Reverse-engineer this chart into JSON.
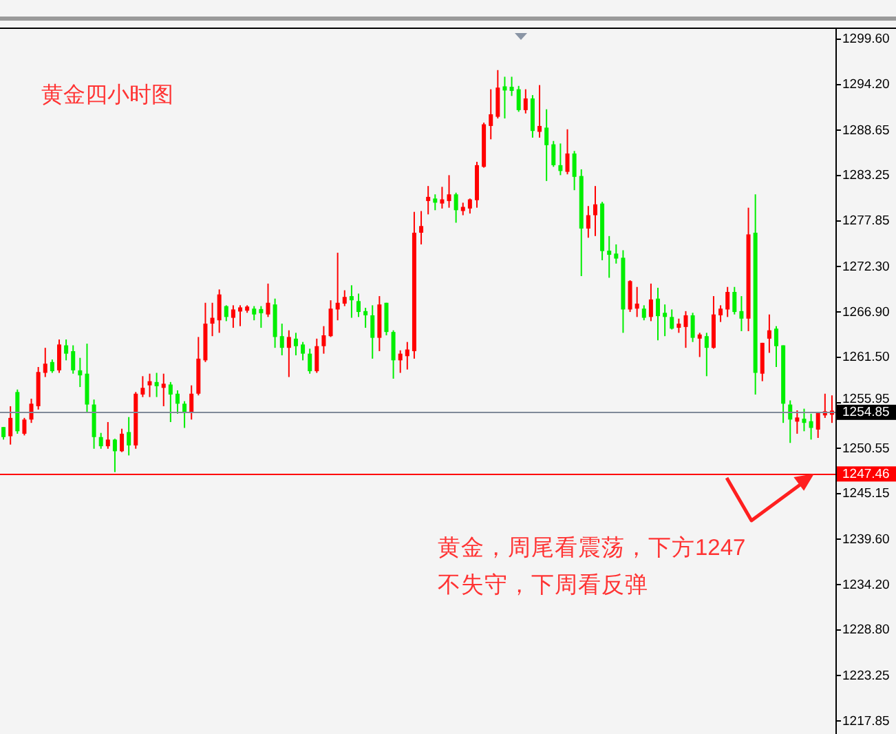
{
  "chart_data": {
    "type": "candlestick",
    "title": "黄金四小时图",
    "annotations": [
      "黄金，周尾看震荡，下方1247\n不失守，下周看反弹"
    ],
    "categories": [
      null,
      null,
      null,
      null,
      null,
      null,
      null,
      null,
      null,
      null,
      null,
      null,
      null,
      null,
      null,
      null,
      null,
      null,
      null,
      null,
      null,
      null,
      null,
      null,
      null,
      null,
      null,
      null,
      null,
      null,
      null,
      null,
      null,
      null,
      null,
      null,
      null,
      null,
      null,
      null,
      null,
      null,
      null,
      null,
      null,
      null,
      null,
      null,
      null,
      null,
      null,
      null,
      null,
      null,
      null,
      null,
      null,
      null,
      null,
      null,
      null,
      null,
      null,
      null,
      null,
      null,
      null,
      null,
      null,
      null,
      null,
      null,
      null,
      null,
      null,
      null,
      null,
      null,
      null,
      null,
      null,
      null,
      null,
      null,
      null,
      null,
      null,
      null,
      null,
      null,
      null,
      null,
      null,
      null,
      null,
      null,
      null,
      null,
      null,
      null,
      null,
      null,
      null,
      null,
      null,
      null,
      null,
      null,
      null,
      null,
      null,
      null,
      null,
      null,
      null,
      null,
      null,
      null,
      null,
      null
    ],
    "ohlc": [
      [
        1253.0,
        1253.0,
        1251.5,
        1251.8
      ],
      [
        1251.9,
        1255.5,
        1250.9,
        1254.1
      ],
      [
        1257.2,
        1257.5,
        1252.2,
        1252.5
      ],
      [
        1252.2,
        1254.1,
        1252.0,
        1253.9
      ],
      [
        1253.9,
        1256.4,
        1253.5,
        1255.8
      ],
      [
        1255.5,
        1260.2,
        1255.1,
        1259.6
      ],
      [
        1259.5,
        1262.5,
        1259.0,
        1260.6
      ],
      [
        1260.8,
        1261.1,
        1259.5,
        1259.7
      ],
      [
        1259.8,
        1263.5,
        1259.5,
        1262.9
      ],
      [
        1262.8,
        1263.5,
        1261.0,
        1261.8
      ],
      [
        1262.1,
        1262.8,
        1259.4,
        1259.8
      ],
      [
        1259.8,
        1261.3,
        1257.8,
        1259.2
      ],
      [
        1259.4,
        1263.0,
        1254.8,
        1255.7
      ],
      [
        1255.7,
        1256.3,
        1250.4,
        1251.8
      ],
      [
        1251.8,
        1252.3,
        1250.4,
        1250.7
      ],
      [
        1250.7,
        1253.6,
        1250.4,
        1251.5
      ],
      [
        1251.5,
        1251.6,
        1247.6,
        1250.1
      ],
      [
        1250.1,
        1252.8,
        1250.0,
        1252.2
      ],
      [
        1252.4,
        1254.2,
        1249.6,
        1250.8
      ],
      [
        1250.8,
        1257.2,
        1250.4,
        1257.0
      ],
      [
        1256.9,
        1259.1,
        1256.6,
        1257.7
      ],
      [
        1258.1,
        1259.4,
        1256.6,
        1258.4
      ],
      [
        1258.4,
        1259.5,
        1256.6,
        1257.9
      ],
      [
        1257.9,
        1259.4,
        1255.5,
        1258.0
      ],
      [
        1258.1,
        1258.4,
        1253.6,
        1256.9
      ],
      [
        1257.0,
        1257.4,
        1254.6,
        1255.8
      ],
      [
        1255.8,
        1256.1,
        1252.9,
        1254.8
      ],
      [
        1254.8,
        1258.0,
        1253.9,
        1257.0
      ],
      [
        1257.0,
        1263.8,
        1256.8,
        1261.2
      ],
      [
        1261.0,
        1267.9,
        1260.8,
        1265.4
      ],
      [
        1265.4,
        1267.9,
        1263.9,
        1266.1
      ],
      [
        1265.8,
        1269.5,
        1264.3,
        1268.9
      ],
      [
        1267.5,
        1267.6,
        1265.7,
        1266.2
      ],
      [
        1266.1,
        1267.6,
        1264.9,
        1267.1
      ],
      [
        1266.9,
        1267.6,
        1265.1,
        1267.3
      ],
      [
        1267.1,
        1267.6,
        1266.7,
        1267.3
      ],
      [
        1267.2,
        1267.5,
        1265.8,
        1266.5
      ],
      [
        1267.1,
        1267.5,
        1264.9,
        1266.7
      ],
      [
        1266.5,
        1270.2,
        1266.2,
        1267.9
      ],
      [
        1267.7,
        1268.4,
        1262.5,
        1263.8
      ],
      [
        1263.9,
        1265.4,
        1261.6,
        1262.5
      ],
      [
        1262.5,
        1264.6,
        1259.0,
        1263.8
      ],
      [
        1263.6,
        1264.3,
        1261.6,
        1262.7
      ],
      [
        1262.9,
        1263.2,
        1261.0,
        1261.8
      ],
      [
        1261.8,
        1262.4,
        1259.4,
        1259.7
      ],
      [
        1259.7,
        1263.6,
        1259.5,
        1262.7
      ],
      [
        1262.7,
        1265.1,
        1261.8,
        1264.0
      ],
      [
        1263.9,
        1268.2,
        1263.8,
        1267.2
      ],
      [
        1267.1,
        1273.9,
        1265.8,
        1267.9
      ],
      [
        1267.8,
        1269.4,
        1267.5,
        1268.6
      ],
      [
        1268.6,
        1270.0,
        1266.1,
        1268.3
      ],
      [
        1268.1,
        1269.0,
        1266.2,
        1266.8
      ],
      [
        1266.9,
        1267.3,
        1264.9,
        1266.4
      ],
      [
        1266.4,
        1267.6,
        1261.2,
        1263.7
      ],
      [
        1263.7,
        1268.7,
        1262.1,
        1267.7
      ],
      [
        1267.9,
        1267.9,
        1264.0,
        1264.4
      ],
      [
        1264.4,
        1264.6,
        1258.8,
        1261.0
      ],
      [
        1261.0,
        1262.2,
        1259.5,
        1261.8
      ],
      [
        1261.5,
        1263.2,
        1259.9,
        1262.3
      ],
      [
        1262.1,
        1278.8,
        1261.2,
        1276.3
      ],
      [
        1276.3,
        1278.9,
        1274.9,
        1277.1
      ],
      [
        1280.3,
        1281.9,
        1278.5,
        1280.4
      ],
      [
        1280.4,
        1280.9,
        1279.0,
        1279.9
      ],
      [
        1279.8,
        1281.8,
        1279.2,
        1280.3
      ],
      [
        1280.1,
        1283.2,
        1279.3,
        1280.9
      ],
      [
        1280.9,
        1281.1,
        1277.5,
        1279.0
      ],
      [
        1279.0,
        1279.9,
        1278.4,
        1279.3
      ],
      [
        1279.2,
        1280.4,
        1278.6,
        1280.3
      ],
      [
        1280.2,
        1284.8,
        1279.3,
        1284.4
      ],
      [
        1284.2,
        1289.5,
        1284.1,
        1289.3
      ],
      [
        1289.1,
        1293.5,
        1287.5,
        1290.5
      ],
      [
        1290.2,
        1295.8,
        1290.0,
        1293.7
      ],
      [
        1293.7,
        1295.0,
        1290.0,
        1293.5
      ],
      [
        1293.7,
        1295.0,
        1292.7,
        1293.4
      ],
      [
        1293.5,
        1293.9,
        1290.8,
        1291.0
      ],
      [
        1291.0,
        1293.5,
        1290.6,
        1292.4
      ],
      [
        1292.4,
        1292.8,
        1287.7,
        1288.5
      ],
      [
        1288.4,
        1294.0,
        1287.7,
        1289.1
      ],
      [
        1288.9,
        1291.1,
        1282.5,
        1286.8
      ],
      [
        1286.9,
        1287.3,
        1284.2,
        1284.4
      ],
      [
        1284.4,
        1287.0,
        1283.2,
        1283.7
      ],
      [
        1283.6,
        1288.7,
        1283.3,
        1285.8
      ],
      [
        1285.8,
        1286.1,
        1281.4,
        1283.0
      ],
      [
        1283.1,
        1283.9,
        1271.1,
        1276.8
      ],
      [
        1276.8,
        1279.5,
        1275.7,
        1278.4
      ],
      [
        1278.4,
        1281.9,
        1275.9,
        1279.7
      ],
      [
        1279.8,
        1280.0,
        1273.0,
        1274.1
      ],
      [
        1274.1,
        1275.9,
        1270.9,
        1273.7
      ],
      [
        1273.8,
        1274.9,
        1272.6,
        1273.2
      ],
      [
        1273.3,
        1274.2,
        1264.3,
        1267.1
      ],
      [
        1267.1,
        1270.6,
        1266.8,
        1270.5
      ],
      [
        1267.2,
        1269.8,
        1266.2,
        1267.8
      ],
      [
        1267.2,
        1267.6,
        1265.8,
        1266.1
      ],
      [
        1266.2,
        1270.2,
        1265.7,
        1268.3
      ],
      [
        1268.4,
        1269.7,
        1263.4,
        1266.3
      ],
      [
        1266.6,
        1267.7,
        1263.9,
        1266.3
      ],
      [
        1266.2,
        1267.1,
        1264.7,
        1264.8
      ],
      [
        1265.1,
        1266.0,
        1264.3,
        1265.2
      ],
      [
        1265.0,
        1266.9,
        1262.5,
        1266.4
      ],
      [
        1266.4,
        1266.7,
        1263.2,
        1263.7
      ],
      [
        1263.7,
        1264.3,
        1261.4,
        1264.0
      ],
      [
        1263.9,
        1264.3,
        1259.1,
        1262.5
      ],
      [
        1262.5,
        1268.7,
        1262.4,
        1266.5
      ],
      [
        1266.4,
        1267.6,
        1265.6,
        1267.2
      ],
      [
        1267.1,
        1269.8,
        1266.2,
        1269.2
      ],
      [
        1269.2,
        1269.8,
        1266.5,
        1266.8
      ],
      [
        1266.9,
        1268.7,
        1264.5,
        1266.0
      ],
      [
        1266.0,
        1279.3,
        1264.5,
        1276.1
      ],
      [
        1276.3,
        1280.9,
        1256.9,
        1259.5
      ],
      [
        1259.4,
        1263.1,
        1258.5,
        1263.1
      ],
      [
        1263.6,
        1266.5,
        1261.9,
        1264.6
      ],
      [
        1264.8,
        1265.1,
        1260.2,
        1262.7
      ],
      [
        1262.8,
        1262.8,
        1253.5,
        1255.8
      ],
      [
        1255.7,
        1256.2,
        1251.1,
        1253.9
      ],
      [
        1253.8,
        1255.0,
        1252.2,
        1254.0
      ],
      [
        1254.0,
        1255.2,
        1252.5,
        1253.5
      ],
      [
        1253.7,
        1254.6,
        1251.5,
        1252.9
      ],
      [
        1252.7,
        1254.8,
        1251.7,
        1254.7
      ],
      [
        1254.6,
        1257.0,
        1254.1,
        1254.7
      ],
      [
        1254.6,
        1256.8,
        1253.5,
        1254.85
      ]
    ],
    "ylim": [
      1216.2,
      1300.9
    ],
    "yticks": [
      {
        "value": 1299.6,
        "label": "1299.60"
      },
      {
        "value": 1294.2,
        "label": "1294.20"
      },
      1288.65,
      1283.25,
      1277.85,
      {
        "value": 1272.3,
        "label": "1272.30"
      },
      {
        "value": 1266.9,
        "label": "1266.90"
      },
      {
        "value": 1261.5,
        "label": "1261.50"
      },
      1255.95,
      1250.55,
      1245.15,
      {
        "value": 1239.6,
        "label": "1239.60"
      },
      {
        "value": 1234.2,
        "label": "1234.20"
      },
      {
        "value": 1228.8,
        "label": "1228.80"
      },
      1223.25,
      1217.85
    ],
    "ref_lines": [
      {
        "axis": "y",
        "value": 1254.85,
        "label": "1254.85",
        "color": "#808a99"
      },
      {
        "axis": "y",
        "value": 1247.46,
        "label": "1247.46",
        "color": "#ff0000"
      }
    ]
  }
}
